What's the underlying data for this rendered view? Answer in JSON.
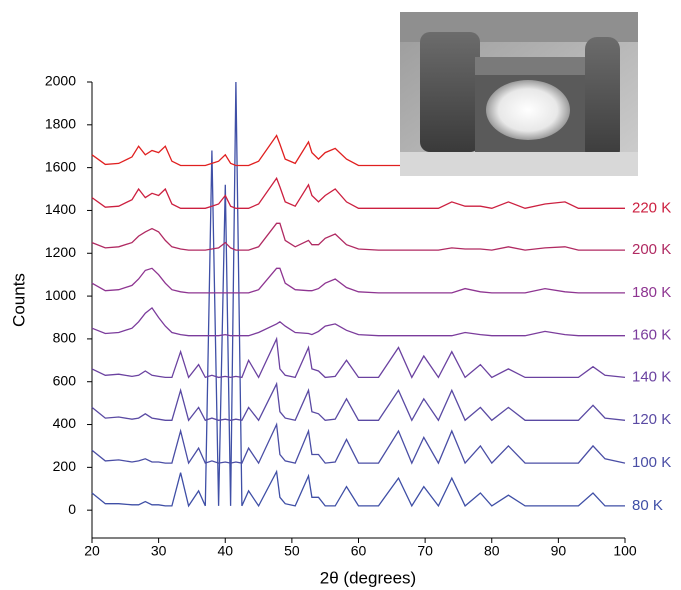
{
  "chart_data": {
    "type": "line",
    "xlabel": "2θ (degrees)",
    "ylabel": "Counts",
    "x": [
      20,
      22,
      24,
      26,
      27,
      28,
      29,
      30,
      31,
      32,
      33.3,
      34.5,
      36,
      37,
      38,
      39,
      40,
      40.8,
      41.6,
      42.5,
      43.5,
      45,
      47.7,
      48.2,
      49,
      50.5,
      52.5,
      53,
      54,
      55,
      56.5,
      58.2,
      60,
      63,
      66,
      68,
      69.8,
      72,
      74,
      76,
      78.3,
      80,
      82.5,
      85,
      88,
      91,
      93,
      95.2,
      97,
      100
    ],
    "xlim": [
      20,
      100
    ],
    "xticks": [
      20,
      30,
      40,
      50,
      60,
      70,
      80,
      90,
      100
    ],
    "ylim": [
      -130,
      2000
    ],
    "yticks": [
      0,
      200,
      400,
      600,
      800,
      1000,
      1200,
      1400,
      1600,
      1800,
      2000
    ],
    "series": [
      {
        "name": "80 K",
        "color": "#3f4fa6",
        "values": [
          80,
          30,
          30,
          25,
          25,
          40,
          25,
          25,
          20,
          20,
          175,
          20,
          90,
          20,
          1680,
          20,
          1520,
          20,
          2000,
          20,
          90,
          20,
          180,
          60,
          30,
          20,
          160,
          60,
          60,
          20,
          20,
          110,
          20,
          20,
          150,
          20,
          110,
          20,
          150,
          20,
          80,
          20,
          70,
          20,
          20,
          20,
          20,
          80,
          20,
          20
        ]
      },
      {
        "name": "100 K",
        "color": "#4a4ea5",
        "values": [
          280,
          230,
          235,
          225,
          230,
          240,
          225,
          225,
          220,
          220,
          370,
          220,
          290,
          220,
          230,
          220,
          225,
          220,
          225,
          220,
          290,
          220,
          400,
          260,
          230,
          220,
          370,
          260,
          260,
          220,
          225,
          330,
          220,
          220,
          370,
          220,
          340,
          220,
          370,
          220,
          300,
          220,
          300,
          220,
          220,
          220,
          220,
          300,
          240,
          220
        ]
      },
      {
        "name": "120 K",
        "color": "#5a4aa3",
        "values": [
          480,
          430,
          435,
          425,
          430,
          450,
          430,
          425,
          420,
          420,
          560,
          420,
          480,
          420,
          430,
          420,
          425,
          420,
          425,
          420,
          480,
          420,
          590,
          460,
          430,
          420,
          560,
          460,
          450,
          420,
          425,
          520,
          420,
          420,
          560,
          420,
          520,
          420,
          560,
          420,
          480,
          420,
          480,
          420,
          420,
          420,
          420,
          490,
          430,
          420
        ]
      },
      {
        "name": "140 K",
        "color": "#6b42a0",
        "values": [
          660,
          630,
          635,
          625,
          630,
          650,
          630,
          625,
          620,
          620,
          740,
          620,
          680,
          620,
          630,
          620,
          625,
          620,
          625,
          620,
          700,
          620,
          800,
          660,
          630,
          620,
          760,
          660,
          650,
          620,
          625,
          700,
          620,
          620,
          760,
          620,
          720,
          620,
          740,
          620,
          680,
          620,
          660,
          620,
          620,
          620,
          620,
          670,
          630,
          620
        ]
      },
      {
        "name": "160 K",
        "color": "#7b3c9c",
        "values": [
          850,
          825,
          830,
          850,
          880,
          920,
          945,
          900,
          860,
          830,
          820,
          815,
          815,
          815,
          815,
          815,
          820,
          815,
          815,
          815,
          815,
          830,
          870,
          880,
          860,
          830,
          825,
          820,
          835,
          860,
          870,
          840,
          820,
          815,
          815,
          815,
          815,
          815,
          815,
          830,
          820,
          815,
          815,
          815,
          835,
          820,
          815,
          815,
          815,
          815
        ]
      },
      {
        "name": "180 K",
        "color": "#8e3591",
        "values": [
          1060,
          1025,
          1030,
          1050,
          1080,
          1120,
          1130,
          1100,
          1060,
          1030,
          1020,
          1015,
          1015,
          1015,
          1015,
          1015,
          1015,
          1015,
          1015,
          1015,
          1015,
          1030,
          1130,
          1130,
          1060,
          1030,
          1025,
          1025,
          1035,
          1060,
          1080,
          1040,
          1020,
          1015,
          1015,
          1015,
          1015,
          1015,
          1015,
          1035,
          1020,
          1015,
          1015,
          1015,
          1035,
          1020,
          1015,
          1015,
          1015,
          1015
        ]
      },
      {
        "name": "200 K",
        "color": "#b02a62",
        "values": [
          1250,
          1225,
          1230,
          1250,
          1280,
          1300,
          1315,
          1300,
          1260,
          1230,
          1220,
          1215,
          1215,
          1215,
          1220,
          1225,
          1250,
          1225,
          1215,
          1215,
          1215,
          1230,
          1340,
          1340,
          1260,
          1230,
          1260,
          1240,
          1240,
          1270,
          1290,
          1240,
          1220,
          1215,
          1215,
          1215,
          1215,
          1215,
          1225,
          1220,
          1220,
          1215,
          1230,
          1215,
          1225,
          1230,
          1215,
          1215,
          1215,
          1215
        ]
      },
      {
        "name": "220 K",
        "color": "#cc2040",
        "values": [
          1460,
          1415,
          1420,
          1450,
          1500,
          1460,
          1480,
          1470,
          1500,
          1430,
          1410,
          1410,
          1410,
          1410,
          1420,
          1430,
          1470,
          1420,
          1410,
          1410,
          1410,
          1430,
          1550,
          1510,
          1440,
          1420,
          1520,
          1470,
          1440,
          1470,
          1500,
          1440,
          1410,
          1410,
          1410,
          1410,
          1410,
          1410,
          1440,
          1420,
          1420,
          1410,
          1440,
          1410,
          1430,
          1440,
          1410,
          1410,
          1410,
          1410
        ]
      },
      {
        "color": "#e02020",
        "values": [
          1660,
          1615,
          1620,
          1650,
          1700,
          1660,
          1680,
          1670,
          1700,
          1630,
          1610,
          1610,
          1610,
          1610,
          1620,
          1630,
          1660,
          1620,
          1610,
          1610,
          1610,
          1630,
          1750,
          1710,
          1640,
          1620,
          1720,
          1670,
          1640,
          1670,
          1690,
          1640,
          1610,
          1610,
          1610,
          1610,
          1610,
          1610,
          1640,
          1620,
          1620,
          1610,
          1640,
          1610,
          1630,
          1640,
          1610,
          1610,
          1610,
          1610
        ]
      }
    ]
  }
}
